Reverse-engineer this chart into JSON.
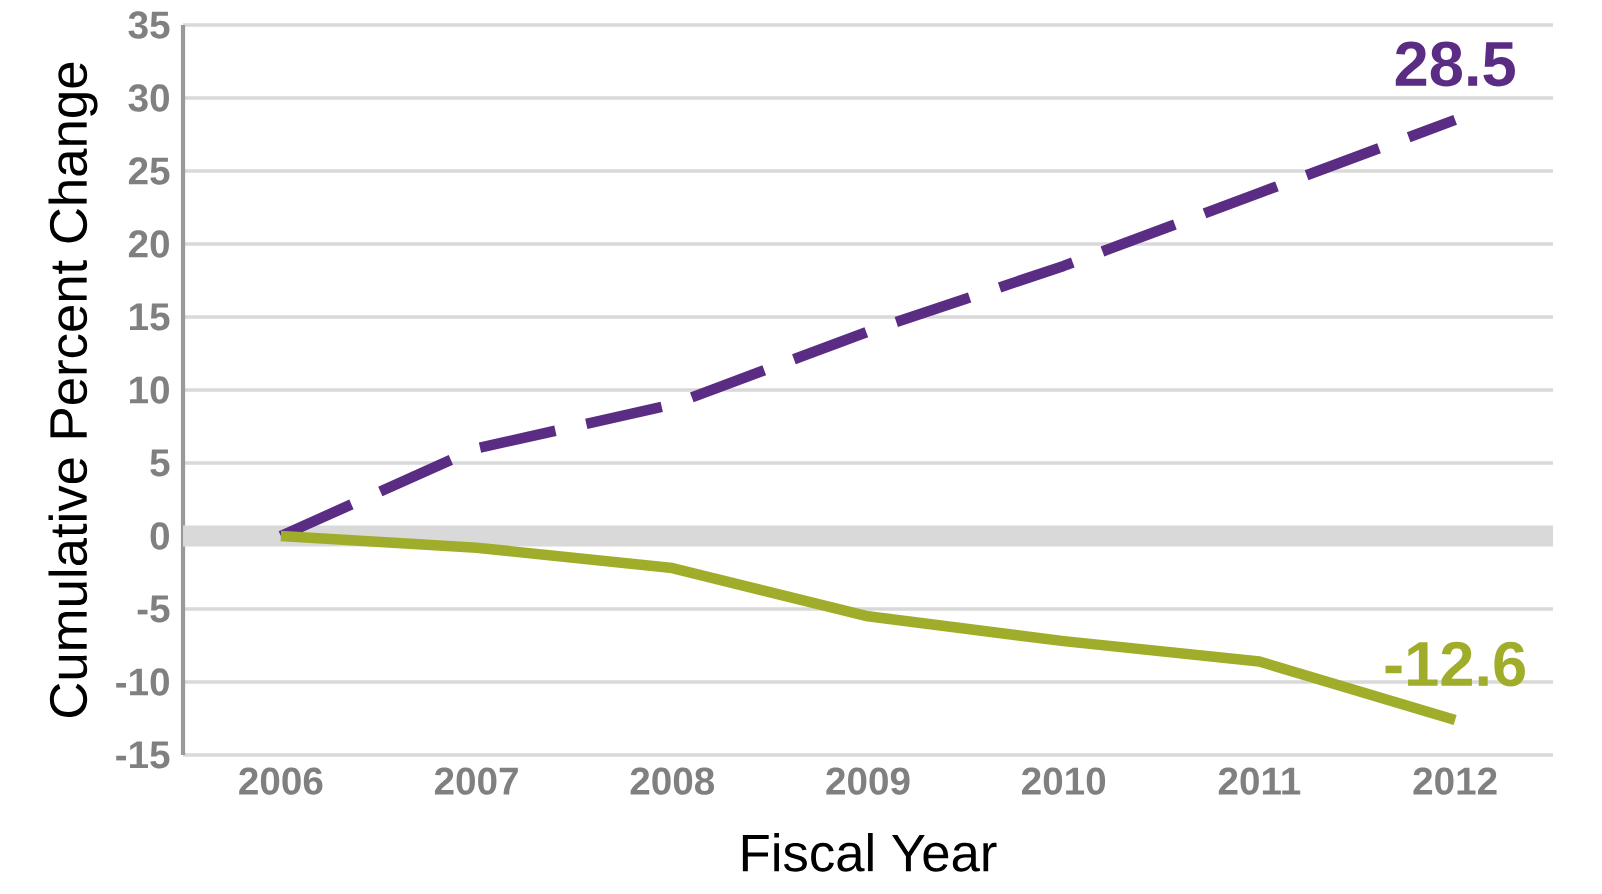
{
  "chart_data": {
    "type": "line",
    "xlabel": "Fiscal Year",
    "ylabel": "Cumulative Percent Change",
    "categories": [
      "2006",
      "2007",
      "2008",
      "2009",
      "2010",
      "2011",
      "2012"
    ],
    "series": [
      {
        "color": "#5b2c83",
        "line_style": "dashed",
        "values": [
          0,
          6,
          9,
          14,
          18.5,
          23.5,
          28.5
        ],
        "value_labels": [
          null,
          null,
          null,
          null,
          null,
          null,
          "28.5"
        ]
      },
      {
        "color": "#a0ad2a",
        "line_style": "solid",
        "values": [
          0,
          -0.8,
          -2.2,
          -5.5,
          -7.2,
          -8.6,
          -12.6
        ],
        "value_labels": [
          null,
          null,
          null,
          null,
          null,
          null,
          "-12.6"
        ]
      }
    ],
    "ylim": [
      -15,
      35
    ],
    "yticks": [
      -15,
      -10,
      -5,
      0,
      5,
      10,
      15,
      20,
      25,
      30,
      35
    ],
    "grid": "y",
    "marker": "none",
    "ref_lines": [
      {
        "axis": "y",
        "value": 0,
        "color": "#d9d9d9"
      }
    ]
  }
}
